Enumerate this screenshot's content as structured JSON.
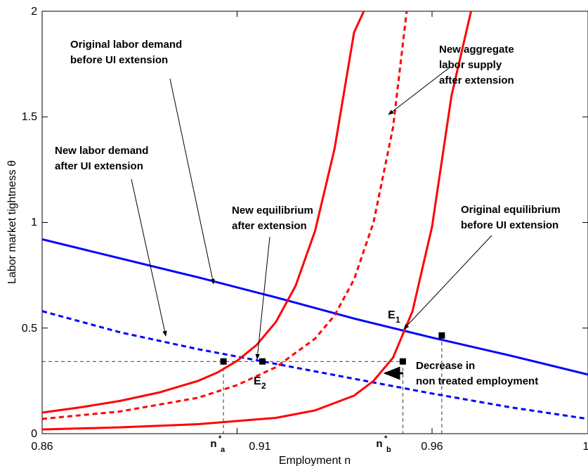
{
  "chart_data": {
    "type": "line",
    "xlabel": "Employment n",
    "ylabel": "Labor market tightness θ",
    "xlim": [
      0.86,
      1.0
    ],
    "ylim": [
      0,
      2
    ],
    "xticks": [
      0.86,
      0.91,
      0.96
    ],
    "xtick_labels": [
      "0.86",
      "0.91",
      "0.96"
    ],
    "yticks": [
      0,
      0.5,
      1,
      1.5,
      2
    ],
    "ytick_labels": [
      "0",
      "0.5",
      "1",
      "1.5",
      "2"
    ],
    "grid": false,
    "legend": "none",
    "series": [
      {
        "color": "#0000ff",
        "dash": "solid",
        "x": [
          0.86,
          0.88,
          0.9,
          0.92,
          0.94,
          0.95,
          0.96,
          0.98,
          1.0
        ],
        "y": [
          0.92,
          0.83,
          0.74,
          0.645,
          0.545,
          0.5,
          0.455,
          0.37,
          0.28
        ]
      },
      {
        "color": "#0000ff",
        "dash": "dashed",
        "x": [
          0.86,
          0.88,
          0.9,
          0.92,
          0.94,
          0.96,
          0.98,
          1.0
        ],
        "y": [
          0.58,
          0.48,
          0.4,
          0.33,
          0.26,
          0.19,
          0.125,
          0.07
        ]
      },
      {
        "color": "#ff0000",
        "dash": "solid",
        "x": [
          0.86,
          0.87,
          0.88,
          0.89,
          0.9,
          0.905,
          0.91,
          0.915,
          0.92,
          0.925,
          0.93,
          0.935,
          0.94,
          0.9425
        ],
        "y": [
          0.1,
          0.125,
          0.155,
          0.195,
          0.25,
          0.29,
          0.345,
          0.42,
          0.53,
          0.7,
          0.96,
          1.35,
          1.9,
          2.0
        ]
      },
      {
        "color": "#ff0000",
        "dash": "dashed",
        "x": [
          0.86,
          0.88,
          0.9,
          0.91,
          0.92,
          0.93,
          0.935,
          0.94,
          0.945,
          0.95,
          0.9535
        ],
        "y": [
          0.07,
          0.105,
          0.17,
          0.23,
          0.315,
          0.45,
          0.56,
          0.73,
          1.0,
          1.45,
          2.0
        ]
      },
      {
        "color": "#ff0000",
        "dash": "solid",
        "x": [
          0.86,
          0.88,
          0.9,
          0.92,
          0.93,
          0.94,
          0.945,
          0.95,
          0.955,
          0.96,
          0.965,
          0.97
        ],
        "y": [
          0.02,
          0.03,
          0.045,
          0.075,
          0.11,
          0.18,
          0.25,
          0.36,
          0.58,
          0.98,
          1.6,
          2.0
        ]
      }
    ],
    "points": [
      {
        "x": 0.9065,
        "y": 0.342
      },
      {
        "x": 0.9165,
        "y": 0.342
      },
      {
        "x": 0.9525,
        "y": 0.342
      },
      {
        "x": 0.9625,
        "y": 0.465
      }
    ],
    "hline_y": 0.342,
    "annotations": [
      {
        "lines": [
          "Original labor demand",
          "before UI extension"
        ]
      },
      {
        "lines": [
          "New labor demand",
          "after UI extension"
        ]
      },
      {
        "lines": [
          "New equilibrium",
          "after extension"
        ]
      },
      {
        "lines": [
          "New aggregate",
          "labor supply",
          "after extension"
        ]
      },
      {
        "lines": [
          "Original equilibrium",
          "before UI extension"
        ]
      },
      {
        "lines": [
          "Decrease in",
          "non treated employment"
        ]
      }
    ],
    "labels": {
      "e1": "E",
      "e1_sub": "1",
      "e2": "E",
      "e2_sub": "2",
      "na": "n",
      "na_sub": "a",
      "na_sup": "*",
      "nb": "n",
      "nb_sub": "b",
      "nb_sup": "*",
      "x_end": "1"
    }
  }
}
